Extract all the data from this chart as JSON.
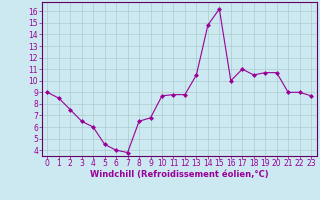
{
  "x": [
    0,
    1,
    2,
    3,
    4,
    5,
    6,
    7,
    8,
    9,
    10,
    11,
    12,
    13,
    14,
    15,
    16,
    17,
    18,
    19,
    20,
    21,
    22,
    23
  ],
  "y": [
    9,
    8.5,
    7.5,
    6.5,
    6,
    4.5,
    4,
    3.8,
    6.5,
    6.8,
    8.7,
    8.8,
    8.8,
    10.5,
    14.8,
    16.2,
    10,
    11,
    10.5,
    10.7,
    10.7,
    9,
    9,
    8.7
  ],
  "line_color": "#990099",
  "marker": "D",
  "marker_size": 2,
  "bg_color": "#cce8f0",
  "grid_color": "#aacccc",
  "xlabel": "Windchill (Refroidissement éolien,°C)",
  "xlabel_color": "#990099",
  "tick_color": "#990099",
  "ylim": [
    3.5,
    16.8
  ],
  "xlim": [
    -0.5,
    23.5
  ],
  "yticks": [
    4,
    5,
    6,
    7,
    8,
    9,
    10,
    11,
    12,
    13,
    14,
    15,
    16
  ],
  "xticks": [
    0,
    1,
    2,
    3,
    4,
    5,
    6,
    7,
    8,
    9,
    10,
    11,
    12,
    13,
    14,
    15,
    16,
    17,
    18,
    19,
    20,
    21,
    22,
    23
  ],
  "tick_fontsize": 5.5,
  "xlabel_fontsize": 6.0,
  "linewidth": 0.8
}
